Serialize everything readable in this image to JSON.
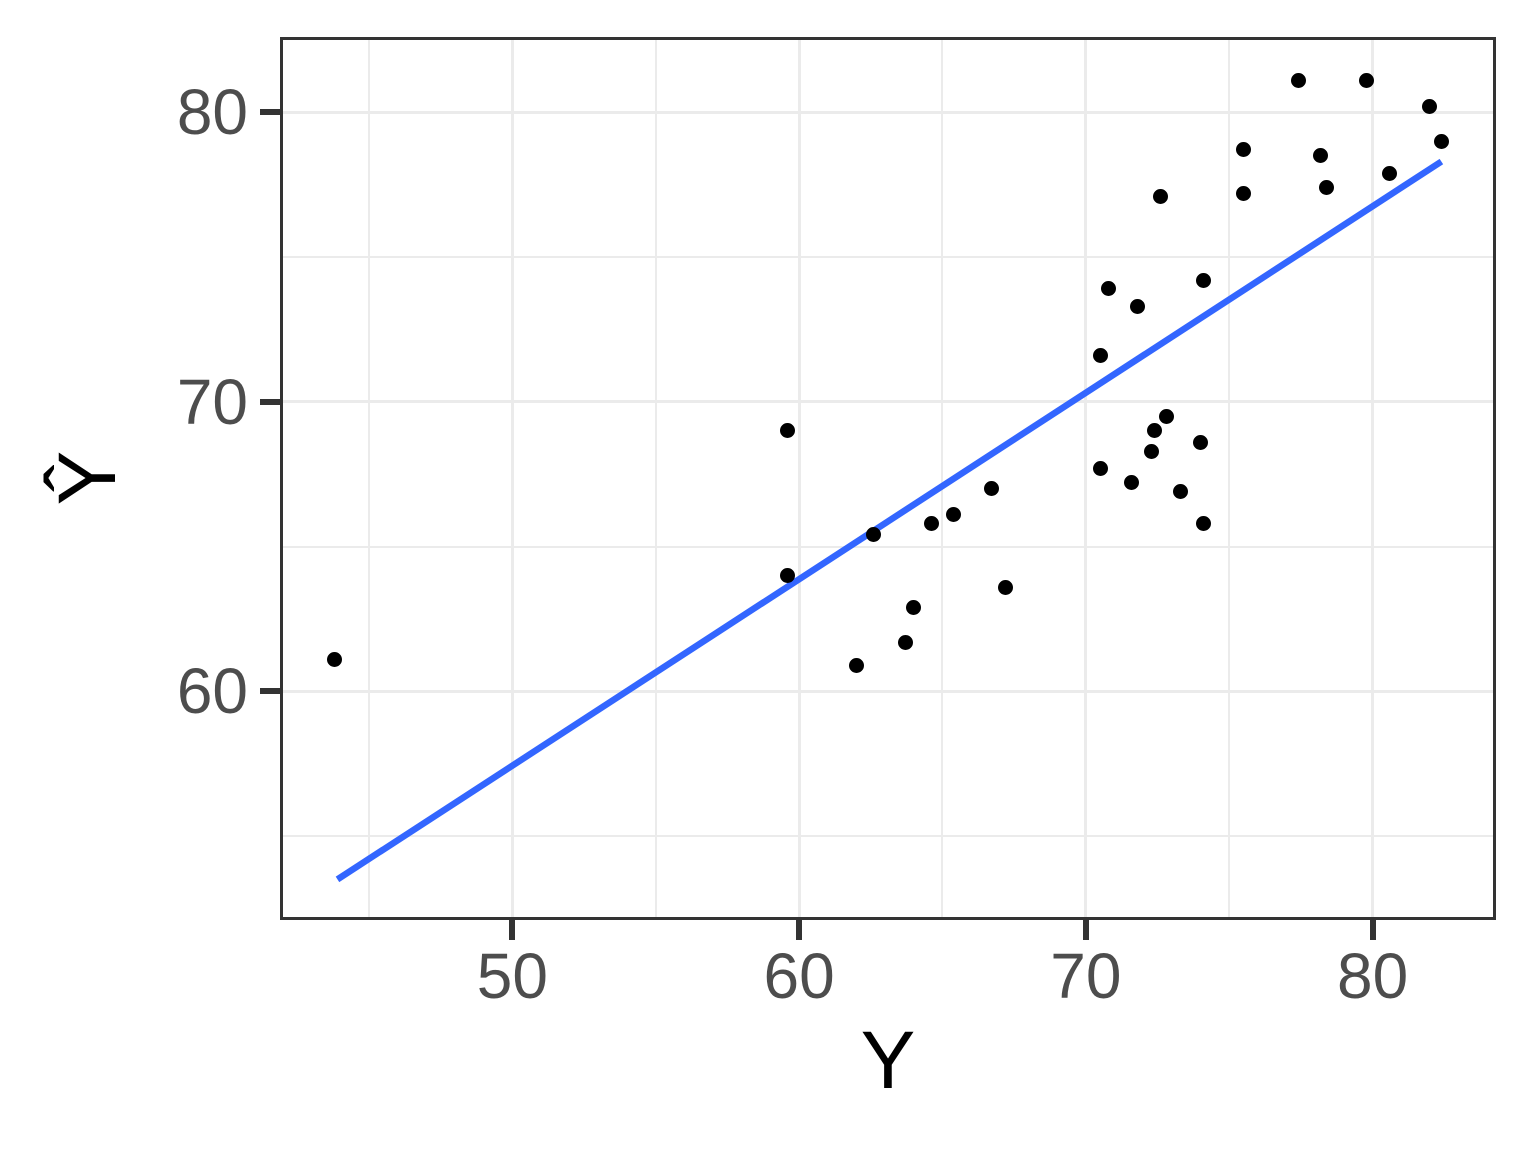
{
  "chart_data": {
    "type": "scatter",
    "title": "",
    "xlabel": "Y",
    "ylabel": "Ŷ",
    "xlim": [
      42.0,
      84.2
    ],
    "ylim": [
      52.2,
      82.5
    ],
    "x_major_ticks": [
      50,
      60,
      70,
      80
    ],
    "x_minor_ticks": [
      45,
      55,
      65,
      75
    ],
    "y_major_ticks": [
      60,
      70,
      80
    ],
    "y_minor_ticks": [
      55,
      65,
      75
    ],
    "grid": true,
    "legend": false,
    "points": [
      [
        43.8,
        61.1
      ],
      [
        59.6,
        69.0
      ],
      [
        59.6,
        64.0
      ],
      [
        62.0,
        60.9
      ],
      [
        62.6,
        65.4
      ],
      [
        63.7,
        61.7
      ],
      [
        64.0,
        62.9
      ],
      [
        64.6,
        65.8
      ],
      [
        65.4,
        66.1
      ],
      [
        66.7,
        67.0
      ],
      [
        67.2,
        63.6
      ],
      [
        70.5,
        71.6
      ],
      [
        70.5,
        67.7
      ],
      [
        70.8,
        73.9
      ],
      [
        71.6,
        67.2
      ],
      [
        71.8,
        73.3
      ],
      [
        72.3,
        68.3
      ],
      [
        72.4,
        69.0
      ],
      [
        72.6,
        77.1
      ],
      [
        72.8,
        69.5
      ],
      [
        73.3,
        66.9
      ],
      [
        74.0,
        68.6
      ],
      [
        74.1,
        74.2
      ],
      [
        74.1,
        65.8
      ],
      [
        75.5,
        78.7
      ],
      [
        75.5,
        77.2
      ],
      [
        77.4,
        81.1
      ],
      [
        78.2,
        78.5
      ],
      [
        78.4,
        77.4
      ],
      [
        79.8,
        81.1
      ],
      [
        80.6,
        77.9
      ],
      [
        82.0,
        80.2
      ],
      [
        82.4,
        79.0
      ]
    ],
    "regression_line": {
      "x1": 43.9,
      "y1": 53.5,
      "x2": 82.4,
      "y2": 78.3
    },
    "colors": {
      "background": "#FFFFFF",
      "panel_background": "#FFFFFF",
      "panel_border": "#333333",
      "grid_major": "#EBEBEB",
      "grid_minor": "#EBEBEB",
      "tick_mark": "#333333",
      "tick_label": "#4D4D4D",
      "axis_title": "#000000",
      "point": "#000000",
      "line": "#3366FF"
    }
  }
}
